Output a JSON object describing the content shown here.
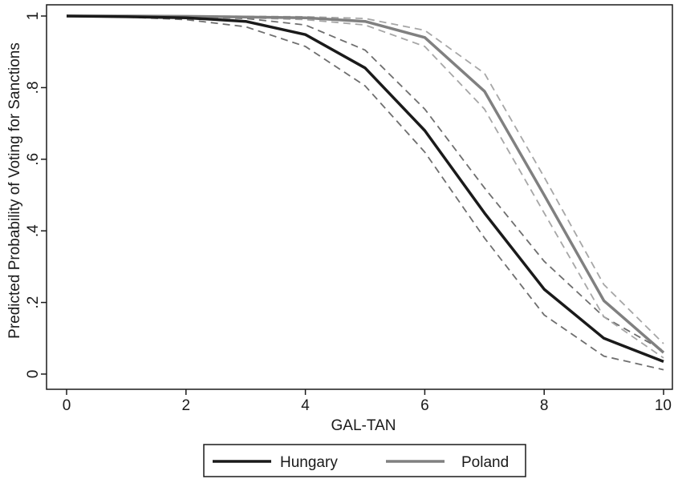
{
  "chart_data": {
    "type": "line",
    "title": "",
    "xlabel": "GAL-TAN",
    "ylabel": "Predicted Probability of Voting for Sanctions",
    "xlim": [
      0,
      10
    ],
    "ylim": [
      0,
      1
    ],
    "x_ticks": [
      0,
      2,
      4,
      6,
      8,
      10
    ],
    "y_ticks": [
      0,
      0.2,
      0.4,
      0.6,
      0.8,
      1
    ],
    "x_tick_labels": [
      "0",
      "2",
      "4",
      "6",
      "8",
      "10"
    ],
    "y_tick_labels": [
      "0",
      ".2",
      ".4",
      ".6",
      ".8",
      "1"
    ],
    "grid": false,
    "legend_position": "bottom",
    "x": [
      0,
      1,
      2,
      3,
      4,
      5,
      6,
      7,
      8,
      9,
      10
    ],
    "series": [
      {
        "name": "Hungary",
        "color": "#1a1a1a",
        "values": [
          1.0,
          0.998,
          0.995,
          0.985,
          0.948,
          0.855,
          0.68,
          0.45,
          0.237,
          0.1,
          0.035
        ],
        "ci_lower": [
          1.0,
          0.997,
          0.99,
          0.97,
          0.915,
          0.805,
          0.62,
          0.38,
          0.165,
          0.05,
          0.012
        ],
        "ci_upper": [
          1.0,
          0.999,
          0.998,
          0.993,
          0.975,
          0.905,
          0.74,
          0.52,
          0.315,
          0.16,
          0.065
        ]
      },
      {
        "name": "Poland",
        "color": "#808080",
        "values": [
          1.0,
          1.0,
          0.999,
          0.997,
          0.995,
          0.985,
          0.94,
          0.79,
          0.5,
          0.205,
          0.06
        ],
        "ci_lower": [
          1.0,
          1.0,
          0.998,
          0.995,
          0.99,
          0.975,
          0.915,
          0.74,
          0.45,
          0.16,
          0.045
        ],
        "ci_upper": [
          1.0,
          1.0,
          1.0,
          0.999,
          0.998,
          0.993,
          0.96,
          0.84,
          0.55,
          0.25,
          0.085
        ]
      }
    ]
  }
}
